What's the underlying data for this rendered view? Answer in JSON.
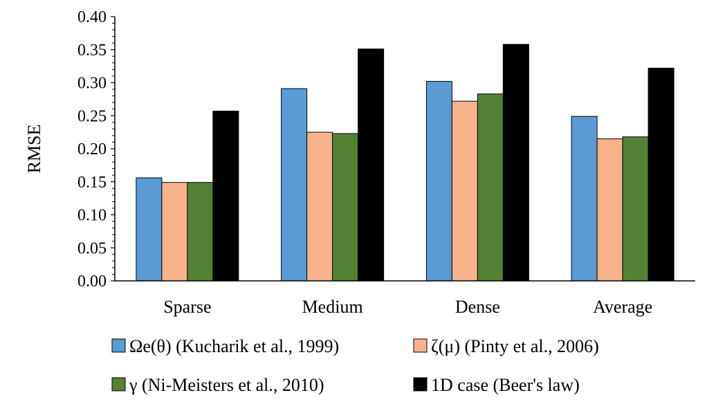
{
  "chart_data": {
    "type": "bar",
    "title": "",
    "xlabel": "",
    "ylabel": "RMSE",
    "ylim": [
      0,
      0.4
    ],
    "yticks": [
      "0.00",
      "0.05",
      "0.10",
      "0.15",
      "0.20",
      "0.25",
      "0.30",
      "0.35",
      "0.40"
    ],
    "grid": false,
    "legend_position": "bottom",
    "categories": [
      "Sparse",
      "Medium",
      "Dense",
      "Average"
    ],
    "series": [
      {
        "name": "Ωe(θ) (Kucharik et al., 1999)",
        "color": "#5B9BD5",
        "values": [
          0.156,
          0.291,
          0.302,
          0.249
        ]
      },
      {
        "name": "ζ(μ) (Pinty et al., 2006)",
        "color": "#F8B28A",
        "values": [
          0.149,
          0.225,
          0.272,
          0.215
        ]
      },
      {
        "name": "γ (Ni-Meisters  et al., 2010)",
        "color": "#548235",
        "values": [
          0.149,
          0.223,
          0.283,
          0.218
        ]
      },
      {
        "name": "1D case (Beer's law)",
        "color": "#000000",
        "values": [
          0.257,
          0.351,
          0.358,
          0.322
        ]
      }
    ]
  }
}
